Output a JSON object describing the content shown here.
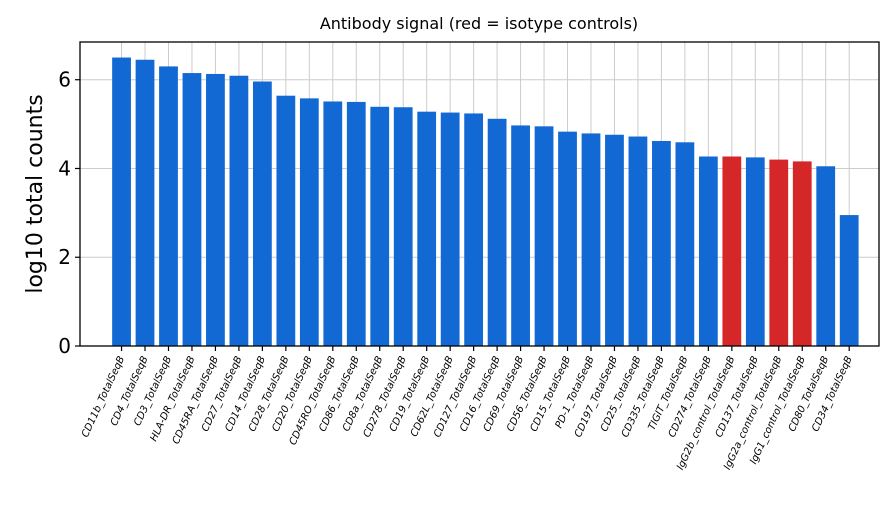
{
  "chart_data": {
    "type": "bar",
    "title": "Antibody signal (red = isotype controls)",
    "xlabel": "",
    "ylabel": "log10 total counts",
    "ylim": [
      0,
      6.85
    ],
    "yticks": [
      0,
      2,
      4,
      6
    ],
    "grid": true,
    "colors": {
      "antibody": "#1269D3",
      "isotype": "#D62728",
      "grid": "#cccccc"
    },
    "categories": [
      "CD11b_TotalSeqB",
      "CD4_TotalSeqB",
      "CD3_TotalSeqB",
      "HLA-DR_TotalSeqB",
      "CD45RA_TotalSeqB",
      "CD27_TotalSeqB",
      "CD14_TotalSeqB",
      "CD28_TotalSeqB",
      "CD20_TotalSeqB",
      "CD45RO_TotalSeqB",
      "CD86_TotalSeqB",
      "CD8a_TotalSeqB",
      "CD278_TotalSeqB",
      "CD19_TotalSeqB",
      "CD62L_TotalSeqB",
      "CD127_TotalSeqB",
      "CD16_TotalSeqB",
      "CD69_TotalSeqB",
      "CD56_TotalSeqB",
      "CD15_TotalSeqB",
      "PD-1_TotalSeqB",
      "CD197_TotalSeqB",
      "CD25_TotalSeqB",
      "CD335_TotalSeqB",
      "TIGIT_TotalSeqB",
      "CD274_TotalSeqB",
      "IgG2b_control_TotalSeqB",
      "CD137_TotalSeqB",
      "IgG2a_control_TotalSeqB",
      "IgG1_control_TotalSeqB",
      "CD80_TotalSeqB",
      "CD34_TotalSeqB"
    ],
    "values": [
      6.5,
      6.45,
      6.3,
      6.15,
      6.13,
      6.09,
      5.96,
      5.64,
      5.58,
      5.51,
      5.5,
      5.39,
      5.38,
      5.28,
      5.26,
      5.24,
      5.12,
      4.97,
      4.95,
      4.83,
      4.79,
      4.76,
      4.72,
      4.62,
      4.59,
      4.27,
      4.27,
      4.25,
      4.2,
      4.16,
      4.05,
      2.95
    ],
    "isotype_control": [
      false,
      false,
      false,
      false,
      false,
      false,
      false,
      false,
      false,
      false,
      false,
      false,
      false,
      false,
      false,
      false,
      false,
      false,
      false,
      false,
      false,
      false,
      false,
      false,
      false,
      false,
      true,
      false,
      true,
      true,
      false,
      false
    ]
  }
}
